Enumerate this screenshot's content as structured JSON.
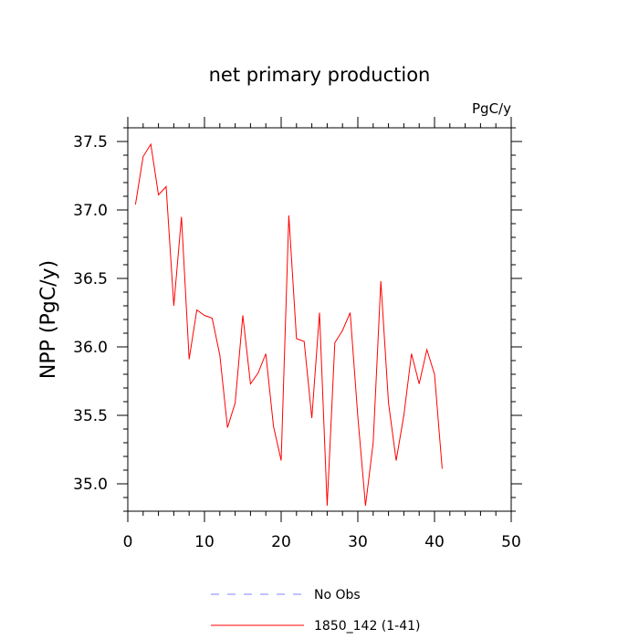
{
  "chart_data": {
    "type": "line",
    "title": "net primary production",
    "units_label": "PgC/y",
    "xlabel": "",
    "ylabel": "NPP  (PgC/y)",
    "xlim": [
      0,
      50
    ],
    "ylim": [
      34.8,
      37.6
    ],
    "x_ticks": [
      0,
      10,
      20,
      30,
      40,
      50
    ],
    "x_tick_labels": [
      "0",
      "10",
      "20",
      "30",
      "40",
      "50"
    ],
    "y_ticks": [
      35.0,
      35.5,
      36.0,
      36.5,
      37.0,
      37.5
    ],
    "y_tick_labels": [
      "35.0",
      "35.5",
      "36.0",
      "36.5",
      "37.0",
      "37.5"
    ],
    "grid": false,
    "legend_position": "bottom",
    "series": [
      {
        "name": "No Obs",
        "color": "#8080ff",
        "style": "dashed",
        "x": [],
        "y": []
      },
      {
        "name": "1850_142 (1-41)",
        "color": "#ff0000",
        "style": "solid",
        "x": [
          1,
          2,
          3,
          4,
          5,
          6,
          7,
          8,
          9,
          10,
          11,
          12,
          13,
          14,
          15,
          16,
          17,
          18,
          19,
          20,
          21,
          22,
          23,
          24,
          25,
          26,
          27,
          28,
          29,
          30,
          31,
          32,
          33,
          34,
          35,
          36,
          37,
          38,
          39,
          40,
          41
        ],
        "y": [
          37.04,
          37.39,
          37.48,
          37.11,
          37.17,
          36.3,
          36.95,
          35.91,
          36.27,
          36.23,
          36.21,
          35.94,
          35.41,
          35.59,
          36.23,
          35.73,
          35.81,
          35.95,
          35.42,
          35.17,
          36.96,
          36.06,
          36.04,
          35.48,
          36.25,
          34.84,
          36.03,
          36.12,
          36.25,
          35.49,
          34.84,
          35.3,
          36.48,
          35.59,
          35.17,
          35.5,
          35.95,
          35.73,
          35.98,
          35.8,
          35.11
        ]
      }
    ]
  }
}
